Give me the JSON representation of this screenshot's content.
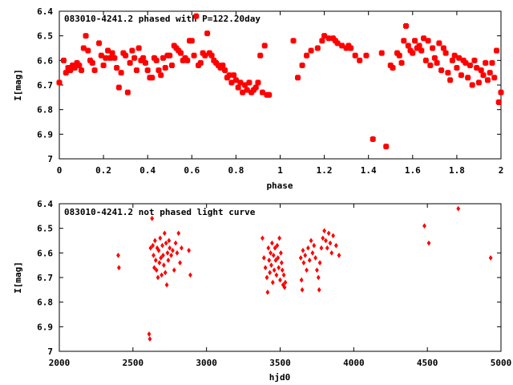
{
  "chart_data": [
    {
      "type": "scatter",
      "title": "083010-4241.2 phased with P=122.20day",
      "xlabel": "phase",
      "ylabel": "I[mag]",
      "xlim": [
        0,
        2
      ],
      "ylim": [
        6.4,
        7
      ],
      "y_inverted": true,
      "x_ticks": [
        "0",
        "0.2",
        "0.4",
        "0.6",
        "0.8",
        "1",
        "1.2",
        "1.4",
        "1.6",
        "1.8",
        "2"
      ],
      "y_ticks": [
        "6.4",
        "6.5",
        "6.6",
        "6.7",
        "6.8",
        "6.9",
        "7"
      ],
      "marker_color": "#ff0000",
      "marker": "filled-star",
      "series": [
        {
          "points": [
            [
              0.0,
              6.69
            ],
            [
              0.02,
              6.6
            ],
            [
              0.03,
              6.65
            ],
            [
              0.04,
              6.63
            ],
            [
              0.05,
              6.64
            ],
            [
              0.06,
              6.62
            ],
            [
              0.07,
              6.63
            ],
            [
              0.08,
              6.61
            ],
            [
              0.09,
              6.62
            ],
            [
              0.1,
              6.64
            ],
            [
              0.11,
              6.55
            ],
            [
              0.12,
              6.5
            ],
            [
              0.13,
              6.56
            ],
            [
              0.14,
              6.6
            ],
            [
              0.15,
              6.61
            ],
            [
              0.16,
              6.64
            ],
            [
              0.18,
              6.53
            ],
            [
              0.19,
              6.58
            ],
            [
              0.2,
              6.62
            ],
            [
              0.21,
              6.59
            ],
            [
              0.22,
              6.56
            ],
            [
              0.23,
              6.59
            ],
            [
              0.24,
              6.57
            ],
            [
              0.25,
              6.59
            ],
            [
              0.26,
              6.63
            ],
            [
              0.27,
              6.71
            ],
            [
              0.28,
              6.65
            ],
            [
              0.29,
              6.57
            ],
            [
              0.3,
              6.58
            ],
            [
              0.31,
              6.73
            ],
            [
              0.32,
              6.61
            ],
            [
              0.33,
              6.56
            ],
            [
              0.34,
              6.59
            ],
            [
              0.35,
              6.64
            ],
            [
              0.36,
              6.55
            ],
            [
              0.37,
              6.6
            ],
            [
              0.38,
              6.59
            ],
            [
              0.39,
              6.61
            ],
            [
              0.4,
              6.64
            ],
            [
              0.41,
              6.67
            ],
            [
              0.42,
              6.67
            ],
            [
              0.43,
              6.59
            ],
            [
              0.44,
              6.6
            ],
            [
              0.45,
              6.64
            ],
            [
              0.46,
              6.66
            ],
            [
              0.47,
              6.59
            ],
            [
              0.48,
              6.63
            ],
            [
              0.49,
              6.58
            ],
            [
              0.5,
              6.58
            ],
            [
              0.51,
              6.62
            ],
            [
              0.52,
              6.54
            ],
            [
              0.53,
              6.55
            ],
            [
              0.54,
              6.56
            ],
            [
              0.55,
              6.57
            ],
            [
              0.56,
              6.6
            ],
            [
              0.57,
              6.59
            ],
            [
              0.58,
              6.6
            ],
            [
              0.59,
              6.52
            ],
            [
              0.6,
              6.52
            ],
            [
              0.61,
              6.58
            ],
            [
              0.62,
              6.42
            ],
            [
              0.63,
              6.62
            ],
            [
              0.64,
              6.61
            ],
            [
              0.65,
              6.57
            ],
            [
              0.66,
              6.58
            ],
            [
              0.67,
              6.49
            ],
            [
              0.68,
              6.57
            ],
            [
              0.69,
              6.58
            ],
            [
              0.7,
              6.6
            ],
            [
              0.71,
              6.61
            ],
            [
              0.72,
              6.62
            ],
            [
              0.73,
              6.63
            ],
            [
              0.74,
              6.62
            ],
            [
              0.75,
              6.64
            ],
            [
              0.76,
              6.67
            ],
            [
              0.77,
              6.66
            ],
            [
              0.78,
              6.69
            ],
            [
              0.79,
              6.66
            ],
            [
              0.8,
              6.68
            ],
            [
              0.81,
              6.71
            ],
            [
              0.82,
              6.69
            ],
            [
              0.83,
              6.73
            ],
            [
              0.84,
              6.7
            ],
            [
              0.85,
              6.72
            ],
            [
              0.86,
              6.69
            ],
            [
              0.87,
              6.73
            ],
            [
              0.88,
              6.72
            ],
            [
              0.89,
              6.71
            ],
            [
              0.9,
              6.69
            ],
            [
              0.91,
              6.58
            ],
            [
              0.92,
              6.73
            ],
            [
              0.93,
              6.54
            ],
            [
              0.94,
              6.74
            ],
            [
              0.95,
              6.74
            ],
            [
              1.06,
              6.52
            ],
            [
              1.08,
              6.67
            ],
            [
              1.1,
              6.62
            ],
            [
              1.12,
              6.58
            ],
            [
              1.14,
              6.56
            ],
            [
              1.17,
              6.55
            ],
            [
              1.19,
              6.52
            ],
            [
              1.2,
              6.5
            ],
            [
              1.22,
              6.51
            ],
            [
              1.24,
              6.51
            ],
            [
              1.25,
              6.52
            ],
            [
              1.26,
              6.53
            ],
            [
              1.28,
              6.54
            ],
            [
              1.3,
              6.55
            ],
            [
              1.31,
              6.54
            ],
            [
              1.32,
              6.55
            ],
            [
              1.34,
              6.58
            ],
            [
              1.36,
              6.6
            ],
            [
              1.39,
              6.58
            ],
            [
              1.42,
              6.92
            ],
            [
              1.46,
              6.57
            ],
            [
              1.48,
              6.95
            ],
            [
              1.5,
              6.62
            ],
            [
              1.51,
              6.63
            ],
            [
              1.53,
              6.57
            ],
            [
              1.54,
              6.58
            ],
            [
              1.55,
              6.61
            ],
            [
              1.56,
              6.52
            ],
            [
              1.57,
              6.46
            ],
            [
              1.58,
              6.54
            ],
            [
              1.59,
              6.56
            ],
            [
              1.6,
              6.57
            ],
            [
              1.61,
              6.52
            ],
            [
              1.62,
              6.55
            ],
            [
              1.63,
              6.54
            ],
            [
              1.64,
              6.56
            ],
            [
              1.65,
              6.51
            ],
            [
              1.66,
              6.6
            ],
            [
              1.67,
              6.52
            ],
            [
              1.68,
              6.62
            ],
            [
              1.69,
              6.55
            ],
            [
              1.7,
              6.59
            ],
            [
              1.71,
              6.61
            ],
            [
              1.72,
              6.53
            ],
            [
              1.73,
              6.64
            ],
            [
              1.74,
              6.55
            ],
            [
              1.75,
              6.57
            ],
            [
              1.76,
              6.65
            ],
            [
              1.77,
              6.68
            ],
            [
              1.78,
              6.6
            ],
            [
              1.79,
              6.58
            ],
            [
              1.8,
              6.63
            ],
            [
              1.81,
              6.59
            ],
            [
              1.82,
              6.66
            ],
            [
              1.83,
              6.6
            ],
            [
              1.84,
              6.61
            ],
            [
              1.85,
              6.67
            ],
            [
              1.86,
              6.62
            ],
            [
              1.87,
              6.7
            ],
            [
              1.88,
              6.6
            ],
            [
              1.89,
              6.63
            ],
            [
              1.9,
              6.69
            ],
            [
              1.91,
              6.64
            ],
            [
              1.92,
              6.66
            ],
            [
              1.93,
              6.61
            ],
            [
              1.94,
              6.68
            ],
            [
              1.95,
              6.65
            ],
            [
              1.96,
              6.61
            ],
            [
              1.97,
              6.67
            ],
            [
              1.98,
              6.56
            ],
            [
              1.99,
              6.77
            ],
            [
              2.0,
              6.73
            ]
          ]
        }
      ]
    },
    {
      "type": "scatter",
      "title": "083010-4241.2 not phased light curve",
      "xlabel": "hjd0",
      "ylabel": "I[mag]",
      "xlim": [
        2000,
        5000
      ],
      "ylim": [
        6.4,
        7
      ],
      "y_inverted": true,
      "x_ticks": [
        "2000",
        "2500",
        "3000",
        "3500",
        "4000",
        "4500",
        "5000"
      ],
      "y_ticks": [
        "6.4",
        "6.5",
        "6.6",
        "6.7",
        "6.8",
        "6.9",
        "7"
      ],
      "marker_color": "#ff0000",
      "marker": "filled-diamond",
      "series": [
        {
          "points": [
            [
              2400,
              6.61
            ],
            [
              2405,
              6.66
            ],
            [
              2610,
              6.93
            ],
            [
              2615,
              6.95
            ],
            [
              2620,
              6.58
            ],
            [
              2630,
              6.46
            ],
            [
              2635,
              6.57
            ],
            [
              2640,
              6.61
            ],
            [
              2645,
              6.66
            ],
            [
              2650,
              6.55
            ],
            [
              2655,
              6.63
            ],
            [
              2660,
              6.67
            ],
            [
              2665,
              6.58
            ],
            [
              2670,
              6.7
            ],
            [
              2675,
              6.59
            ],
            [
              2680,
              6.64
            ],
            [
              2685,
              6.54
            ],
            [
              2690,
              6.62
            ],
            [
              2695,
              6.69
            ],
            [
              2700,
              6.57
            ],
            [
              2705,
              6.61
            ],
            [
              2710,
              6.65
            ],
            [
              2715,
              6.52
            ],
            [
              2720,
              6.68
            ],
            [
              2725,
              6.56
            ],
            [
              2730,
              6.73
            ],
            [
              2735,
              6.6
            ],
            [
              2740,
              6.63
            ],
            [
              2745,
              6.55
            ],
            [
              2750,
              6.58
            ],
            [
              2760,
              6.61
            ],
            [
              2770,
              6.59
            ],
            [
              2780,
              6.67
            ],
            [
              2790,
              6.56
            ],
            [
              2800,
              6.6
            ],
            [
              2810,
              6.52
            ],
            [
              2820,
              6.64
            ],
            [
              2830,
              6.58
            ],
            [
              2880,
              6.59
            ],
            [
              2890,
              6.69
            ],
            [
              3380,
              6.54
            ],
            [
              3390,
              6.62
            ],
            [
              3400,
              6.66
            ],
            [
              3410,
              6.7
            ],
            [
              3415,
              6.76
            ],
            [
              3420,
              6.58
            ],
            [
              3425,
              6.63
            ],
            [
              3430,
              6.68
            ],
            [
              3435,
              6.6
            ],
            [
              3440,
              6.65
            ],
            [
              3445,
              6.56
            ],
            [
              3450,
              6.72
            ],
            [
              3455,
              6.61
            ],
            [
              3460,
              6.67
            ],
            [
              3465,
              6.58
            ],
            [
              3470,
              6.63
            ],
            [
              3475,
              6.69
            ],
            [
              3480,
              6.57
            ],
            [
              3485,
              6.62
            ],
            [
              3490,
              6.66
            ],
            [
              3495,
              6.54
            ],
            [
              3500,
              6.71
            ],
            [
              3505,
              6.6
            ],
            [
              3510,
              6.64
            ],
            [
              3515,
              6.67
            ],
            [
              3520,
              6.73
            ],
            [
              3525,
              6.69
            ],
            [
              3530,
              6.74
            ],
            [
              3535,
              6.72
            ],
            [
              3640,
              6.62
            ],
            [
              3645,
              6.71
            ],
            [
              3650,
              6.75
            ],
            [
              3655,
              6.59
            ],
            [
              3660,
              6.64
            ],
            [
              3670,
              6.61
            ],
            [
              3680,
              6.67
            ],
            [
              3690,
              6.58
            ],
            [
              3700,
              6.63
            ],
            [
              3710,
              6.55
            ],
            [
              3720,
              6.6
            ],
            [
              3730,
              6.57
            ],
            [
              3740,
              6.62
            ],
            [
              3750,
              6.67
            ],
            [
              3760,
              6.7
            ],
            [
              3765,
              6.75
            ],
            [
              3770,
              6.64
            ],
            [
              3780,
              6.58
            ],
            [
              3790,
              6.54
            ],
            [
              3800,
              6.51
            ],
            [
              3810,
              6.55
            ],
            [
              3820,
              6.58
            ],
            [
              3830,
              6.52
            ],
            [
              3840,
              6.56
            ],
            [
              3850,
              6.6
            ],
            [
              3860,
              6.53
            ],
            [
              3880,
              6.57
            ],
            [
              3900,
              6.61
            ],
            [
              4480,
              6.49
            ],
            [
              4510,
              6.56
            ],
            [
              4710,
              6.42
            ],
            [
              4930,
              6.62
            ]
          ]
        }
      ]
    }
  ]
}
